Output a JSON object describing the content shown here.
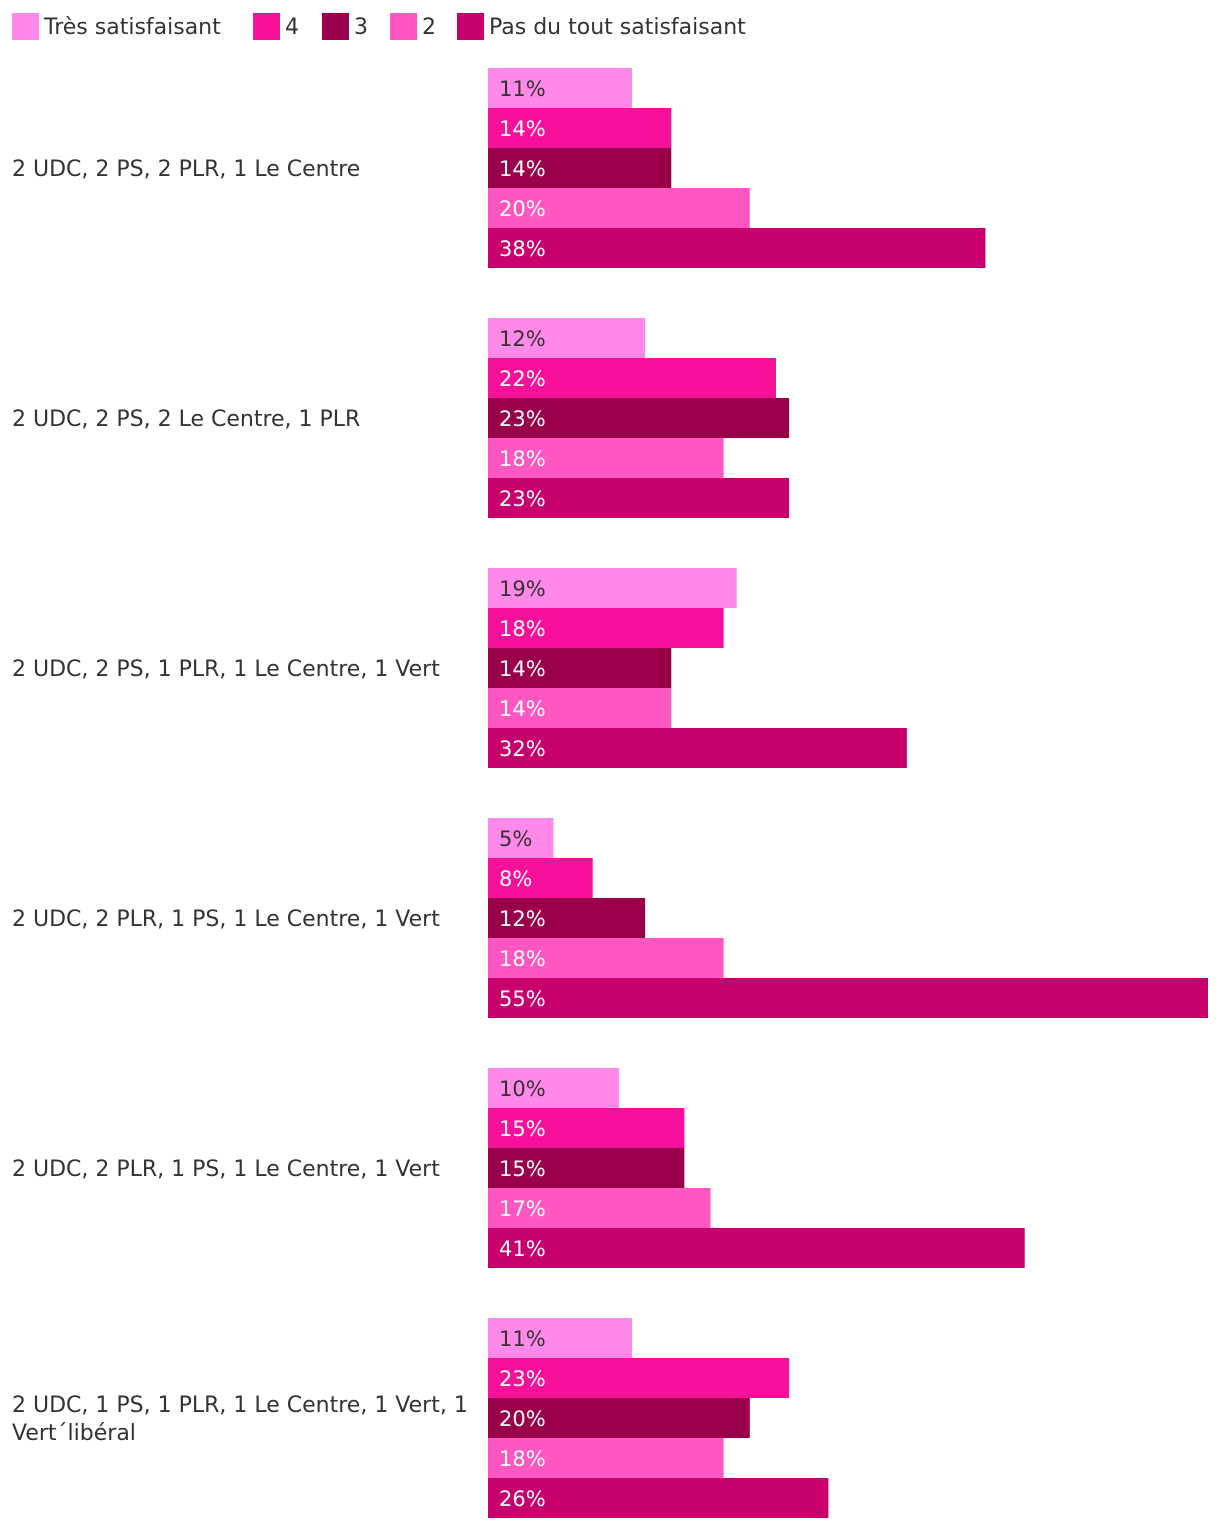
{
  "chart_data": {
    "type": "bar",
    "orientation": "horizontal",
    "title": "",
    "xlabel": "",
    "ylabel": "",
    "grid": false,
    "legend_position": "top-left",
    "value_suffix": "%",
    "xlim": [
      0,
      55
    ],
    "categories": [
      "2 UDC, 2 PS, 2 PLR, 1 Le Centre",
      "2 UDC, 2 PS, 2 Le Centre, 1 PLR",
      "2 UDC, 2 PS, 1 PLR, 1 Le Centre, 1 Vert",
      "2 UDC, 2 PLR, 1 PS, 1 Le Centre, 1 Vert",
      "2 UDC, 2 PLR, 1 PS, 1 Le Centre, 1 Vert",
      "2 UDC, 1 PS, 1 PLR, 1 Le Centre, 1 Vert, 1 Vert´libéral"
    ],
    "category_lines": [
      [
        "2 UDC, 2 PS, 2 PLR, 1 Le Centre"
      ],
      [
        "2 UDC, 2 PS, 2 Le Centre, 1 PLR"
      ],
      [
        "2 UDC, 2 PS, 1 PLR, 1 Le Centre, 1 Vert"
      ],
      [
        "2 UDC, 2 PLR, 1 PS, 1 Le Centre, 1 Vert"
      ],
      [
        "2 UDC, 2 PLR, 1 PS, 1 Le Centre, 1 Vert"
      ],
      [
        "2 UDC, 1 PS, 1 PLR, 1 Le Centre, 1 Vert, 1",
        "Vert´libéral"
      ]
    ],
    "series": [
      {
        "name": "Très satisfaisant",
        "color": "#ff88e8",
        "label_color": "#333333",
        "values": [
          11,
          12,
          19,
          5,
          10,
          11
        ]
      },
      {
        "name": "4",
        "color": "#f7119a",
        "label_color": "#ffffff",
        "values": [
          14,
          22,
          18,
          8,
          15,
          23
        ]
      },
      {
        "name": "3",
        "color": "#990049",
        "label_color": "#ffffff",
        "values": [
          14,
          23,
          14,
          12,
          15,
          20
        ]
      },
      {
        "name": "2",
        "color": "#ff57c1",
        "label_color": "#ffffff",
        "values": [
          20,
          18,
          14,
          18,
          17,
          18
        ]
      },
      {
        "name": "Pas du tout satisfaisant",
        "color": "#c8006e",
        "label_color": "#ffffff",
        "values": [
          38,
          23,
          32,
          55,
          41,
          26
        ]
      }
    ]
  }
}
